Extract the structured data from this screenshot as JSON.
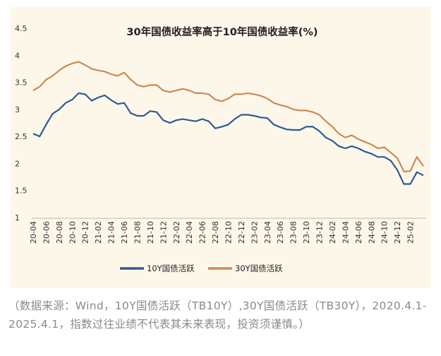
{
  "chart_data": {
    "type": "line",
    "title": "30年国债收益率高于10年国债收益率(%)",
    "ylim": [
      1,
      4.5
    ],
    "yticks": [
      "4.5",
      "4",
      "3.5",
      "3",
      "2.5",
      "2",
      "1.5",
      "1"
    ],
    "ytick_values": [
      4.5,
      4,
      3.5,
      3,
      2.5,
      2,
      1.5,
      1
    ],
    "grid": false,
    "legend_position": "bottom",
    "x_tick_labels": [
      "20-04",
      "20-06",
      "20-08",
      "20-10",
      "20-12",
      "21-02",
      "21-04",
      "21-06",
      "21-08",
      "21-10",
      "21-12",
      "22-02",
      "22-04",
      "22-06",
      "22-08",
      "22-10",
      "22-12",
      "23-02",
      "23-04",
      "23-06",
      "23-08",
      "23-10",
      "23-12",
      "24-02",
      "24-04",
      "24-06",
      "24-08",
      "24-10",
      "24-12",
      "25-02"
    ],
    "x": [
      "20-04",
      "20-05",
      "20-06",
      "20-07",
      "20-08",
      "20-09",
      "20-10",
      "20-11",
      "20-12",
      "21-01",
      "21-02",
      "21-03",
      "21-04",
      "21-05",
      "21-06",
      "21-07",
      "21-08",
      "21-09",
      "21-10",
      "21-11",
      "21-12",
      "22-01",
      "22-02",
      "22-03",
      "22-04",
      "22-05",
      "22-06",
      "22-07",
      "22-08",
      "22-09",
      "22-10",
      "22-11",
      "22-12",
      "23-01",
      "23-02",
      "23-03",
      "23-04",
      "23-05",
      "23-06",
      "23-07",
      "23-08",
      "23-09",
      "23-10",
      "23-11",
      "23-12",
      "24-01",
      "24-02",
      "24-03",
      "24-04",
      "24-05",
      "24-06",
      "24-07",
      "24-08",
      "24-09",
      "24-10",
      "24-11",
      "24-12",
      "25-01",
      "25-02",
      "25-03",
      "25-04"
    ],
    "series": [
      {
        "name": "10Y国债活跃",
        "color": "#2e5a96",
        "values": [
          2.55,
          2.5,
          2.72,
          2.92,
          3.0,
          3.12,
          3.18,
          3.3,
          3.28,
          3.16,
          3.22,
          3.26,
          3.17,
          3.1,
          3.12,
          2.93,
          2.88,
          2.88,
          2.97,
          2.95,
          2.8,
          2.75,
          2.8,
          2.82,
          2.8,
          2.78,
          2.82,
          2.78,
          2.65,
          2.68,
          2.72,
          2.82,
          2.9,
          2.9,
          2.88,
          2.85,
          2.84,
          2.72,
          2.67,
          2.63,
          2.62,
          2.62,
          2.68,
          2.68,
          2.6,
          2.48,
          2.42,
          2.32,
          2.28,
          2.32,
          2.28,
          2.22,
          2.18,
          2.12,
          2.12,
          2.05,
          1.88,
          1.62,
          1.62,
          1.84,
          1.78
        ]
      },
      {
        "name": "30Y国债活跃",
        "color": "#cc8a55",
        "values": [
          3.35,
          3.42,
          3.55,
          3.62,
          3.72,
          3.8,
          3.85,
          3.88,
          3.82,
          3.75,
          3.72,
          3.7,
          3.65,
          3.62,
          3.68,
          3.55,
          3.45,
          3.42,
          3.45,
          3.45,
          3.35,
          3.32,
          3.35,
          3.38,
          3.35,
          3.3,
          3.3,
          3.28,
          3.18,
          3.15,
          3.2,
          3.28,
          3.28,
          3.3,
          3.28,
          3.25,
          3.2,
          3.12,
          3.08,
          3.05,
          3.0,
          2.98,
          2.98,
          2.95,
          2.9,
          2.78,
          2.68,
          2.55,
          2.48,
          2.52,
          2.45,
          2.4,
          2.35,
          2.28,
          2.3,
          2.2,
          2.1,
          1.85,
          1.86,
          2.12,
          1.95
        ]
      }
    ]
  },
  "caption": "（数据来源：Wind，10Y国债活跃（TB10Y）,30Y国债活跃（TB30Y），2020.4.1-2025.4.1，指数过往业绩不代表其未来表现，投资须谨慎。）"
}
